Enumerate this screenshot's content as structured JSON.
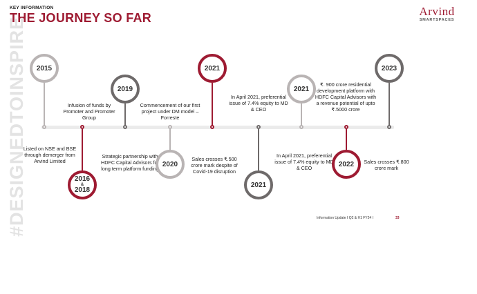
{
  "header": {
    "section_label": "KEY INFORMATION",
    "title": "THE JOURNEY SO FAR"
  },
  "logo": {
    "brand": "Arvind",
    "sub": "SMARTSPACES"
  },
  "side_text": "#DESIGNEDTOINSPIRE",
  "colors": {
    "accent": "#9e1b32",
    "light_gray": "#b9b4b4",
    "dark_gray": "#6e6a6a",
    "timeline": "#ebebeb"
  },
  "milestones": [
    {
      "year": "2015",
      "color": "light_gray",
      "position": "above",
      "text": "Listed on NSE and BSE through demerger from Arvind Limited"
    },
    {
      "year_top": "2016",
      "year_amp": "&",
      "year_bottom": "2018",
      "color": "accent",
      "position": "below",
      "text": "Infusion of funds by Promoter and Promoter Group"
    },
    {
      "year": "2019",
      "color": "dark_gray",
      "position": "above",
      "text": "Strategic partnership with HDFC Capital Advisors for long term platform funding"
    },
    {
      "year": "2020",
      "color": "light_gray",
      "position": "below",
      "text": "Commencement of our first project under DM model – Forreste"
    },
    {
      "year": "2021",
      "color": "accent",
      "position": "above",
      "text": "Sales crosses ₹.500 crore mark  despite of Covid-19 disruption"
    },
    {
      "year": "2021",
      "color": "dark_gray",
      "position": "below",
      "text": "In April 2021, preferential issue of 7.4% equity to MD & CEO"
    },
    {
      "year": "2021",
      "color": "light_gray",
      "position": "above",
      "text": "In April 2021, preferential issue of 7.4% equity to MD & CEO"
    },
    {
      "year": "2022",
      "color": "accent",
      "position": "below",
      "text": "₹. 900 crore residential development platform with HDFC Capital Advisors with a revenue potential of upto ₹.5000 crore"
    },
    {
      "year": "2023",
      "color": "dark_gray",
      "position": "above",
      "text": "Sales crosses ₹.800 crore mark"
    }
  ],
  "footer": {
    "label": "Information Update I Q2 & H1 FY24 I",
    "page_number": "33"
  }
}
